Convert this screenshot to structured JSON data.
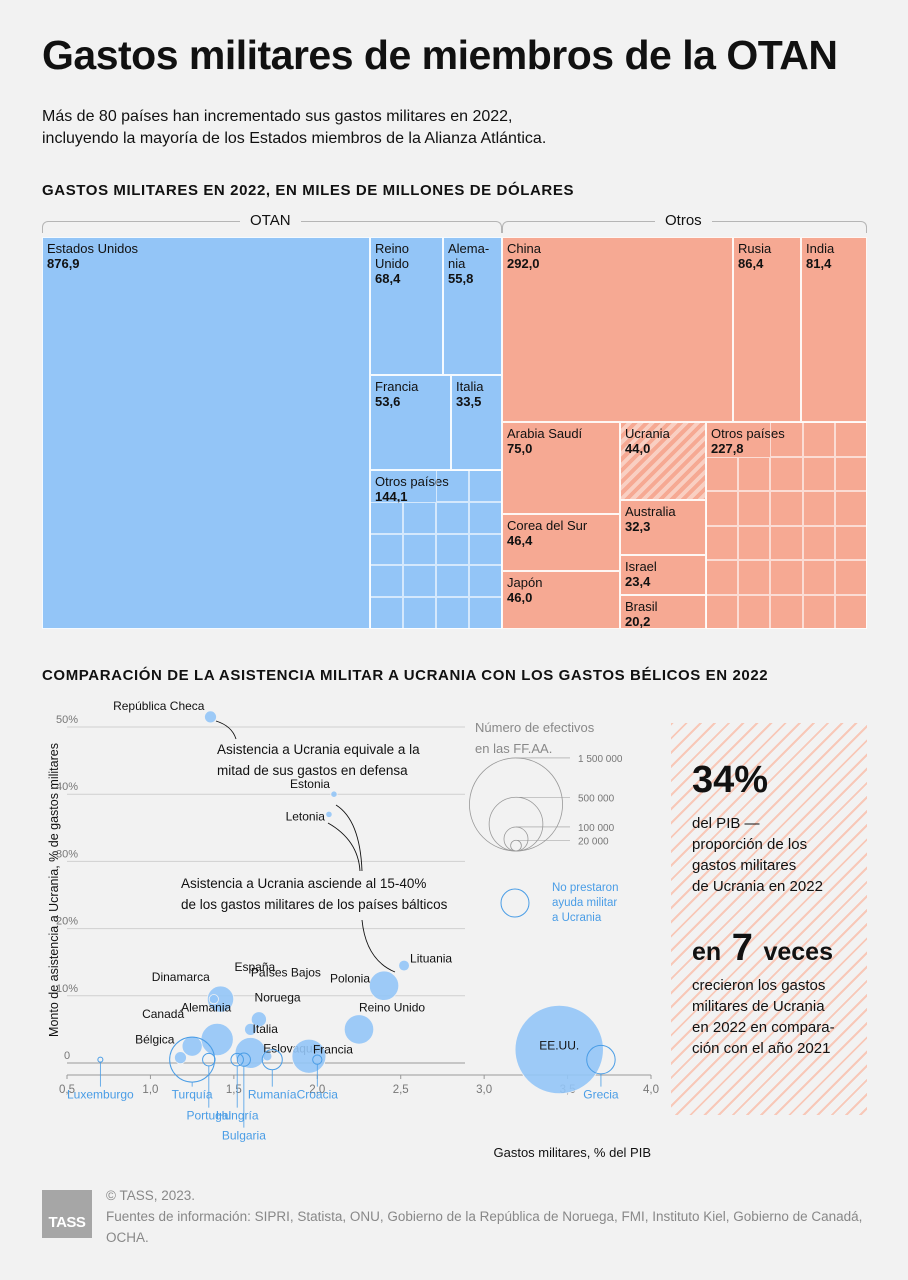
{
  "title": "Gastos militares de miembros de la OTAN",
  "subtitle_line1": "Más de 80 países han incrementado sus gastos militares en 2022,",
  "subtitle_line2": "incluyendo la mayoría de los Estados miembros de la Alianza Atlántica.",
  "section1_title": "GASTOS MILITARES EN 2022, EN MILES DE MILLONES DE DÓLARES",
  "group_labels": {
    "nato": "OTAN",
    "others": "Otros"
  },
  "section2_title": "COMPARACIÓN DE LA ASISTENCIA MILITAR A UCRANIA CON LOS GASTOS BÉLICOS EN 2022",
  "chart_data": [
    {
      "type": "treemap",
      "groups": [
        {
          "name": "OTAN",
          "items": [
            {
              "name": "Estados Unidos",
              "value": 876.9,
              "value_label": "876,9"
            },
            {
              "name": "Reino Unido",
              "value": 68.4,
              "value_label": "68,4"
            },
            {
              "name": "Alema-nia",
              "value": 55.8,
              "value_label": "55,8"
            },
            {
              "name": "Francia",
              "value": 53.6,
              "value_label": "53,6"
            },
            {
              "name": "Italia",
              "value": 33.5,
              "value_label": "33,5"
            },
            {
              "name": "Otros países",
              "value": 144.1,
              "value_label": "144,1"
            }
          ]
        },
        {
          "name": "Otros",
          "items": [
            {
              "name": "China",
              "value": 292.0,
              "value_label": "292,0"
            },
            {
              "name": "Rusia",
              "value": 86.4,
              "value_label": "86,4"
            },
            {
              "name": "India",
              "value": 81.4,
              "value_label": "81,4"
            },
            {
              "name": "Arabia Saudí",
              "value": 75.0,
              "value_label": "75,0"
            },
            {
              "name": "Ucrania",
              "value": 44.0,
              "value_label": "44,0"
            },
            {
              "name": "Otros países",
              "value": 227.8,
              "value_label": "227,8"
            },
            {
              "name": "Corea del Sur",
              "value": 46.4,
              "value_label": "46,4"
            },
            {
              "name": "Australia",
              "value": 32.3,
              "value_label": "32,3"
            },
            {
              "name": "Israel",
              "value": 23.4,
              "value_label": "23,4"
            },
            {
              "name": "Japón",
              "value": 46.0,
              "value_label": "46,0"
            },
            {
              "name": "Brasil",
              "value": 20.2,
              "value_label": "20,2"
            }
          ]
        }
      ]
    },
    {
      "type": "scatter",
      "xlabel": "Gastos militares, % del PIB",
      "ylabel": "Monto de asistencia a Ucrania, % de gastos militares",
      "xlim": [
        0.5,
        4.0
      ],
      "ylim": [
        0,
        50
      ],
      "x_ticks": [
        "0,5",
        "1,0",
        "1,5",
        "2,0",
        "2,5",
        "3,0",
        "3,5",
        "4,0"
      ],
      "y_ticks": [
        "0",
        "10%",
        "20%",
        "30%",
        "40%",
        "50%"
      ],
      "grid": true,
      "points": [
        {
          "name": "República Checa",
          "x": 1.36,
          "y": 51.5,
          "troops": 25000
        },
        {
          "name": "Estonia",
          "x": 2.1,
          "y": 40,
          "troops": 7000
        },
        {
          "name": "Letonia",
          "x": 2.07,
          "y": 37,
          "troops": 7000
        },
        {
          "name": "Lituania",
          "x": 2.52,
          "y": 14.5,
          "troops": 20000
        },
        {
          "name": "Polonia",
          "x": 2.4,
          "y": 11.5,
          "troops": 150000
        },
        {
          "name": "España",
          "x": 1.42,
          "y": 9.5,
          "troops": 120000
        },
        {
          "name": "Dinamarca",
          "x": 1.38,
          "y": 9.5,
          "troops": 15000
        },
        {
          "name": "Países Bajos",
          "x": 1.65,
          "y": 6.5,
          "troops": 40000
        },
        {
          "name": "Reino Unido",
          "x": 2.25,
          "y": 5,
          "troops": 150000
        },
        {
          "name": "Noruega",
          "x": 1.6,
          "y": 5,
          "troops": 25000
        },
        {
          "name": "Alemania",
          "x": 1.4,
          "y": 3.5,
          "troops": 180000
        },
        {
          "name": "Canadá",
          "x": 1.25,
          "y": 2.5,
          "troops": 70000
        },
        {
          "name": "Italia",
          "x": 1.6,
          "y": 1.5,
          "troops": 165000
        },
        {
          "name": "Eslovaquia",
          "x": 1.7,
          "y": 1,
          "troops": 15000
        },
        {
          "name": "Francia",
          "x": 1.95,
          "y": 1,
          "troops": 200000
        },
        {
          "name": "Bélgica",
          "x": 1.18,
          "y": 0.8,
          "troops": 25000
        },
        {
          "name": "EE.UU.",
          "x": 3.45,
          "y": 2,
          "troops": 1350000
        }
      ],
      "no_aid": [
        {
          "name": "Luxemburgo",
          "x": 0.7,
          "troops": 1000
        },
        {
          "name": "Turquía",
          "x": 1.25,
          "troops": 350000
        },
        {
          "name": "Portugal",
          "x": 1.35,
          "troops": 27000
        },
        {
          "name": "Hungría",
          "x": 1.52,
          "troops": 27000
        },
        {
          "name": "Bulgaria",
          "x": 1.56,
          "troops": 30000
        },
        {
          "name": "Rumanía",
          "x": 1.73,
          "troops": 70000
        },
        {
          "name": "Croacia",
          "x": 2.0,
          "troops": 15000
        },
        {
          "name": "Grecia",
          "x": 3.7,
          "troops": 140000
        }
      ],
      "legend_title_1": "Número de efectivos",
      "legend_title_2": "en las FF.AA.",
      "legend_sizes": [
        {
          "label": "1 500 000",
          "value": 1500000
        },
        {
          "label": "500 000",
          "value": 500000
        },
        {
          "label": "100 000",
          "value": 100000
        },
        {
          "label": "20 000",
          "value": 20000
        }
      ],
      "no_aid_legend": [
        "No prestaron",
        "ayuda militar",
        "a Ucrania"
      ],
      "annotations": [
        [
          "Asistencia a Ucrania equivale a la",
          "mitad de sus gastos en defensa"
        ],
        [
          "Asistencia a Ucrania asciende al 15-40%",
          "de los gastos militares de los países bálticos"
        ]
      ]
    }
  ],
  "callout": {
    "stat1": "34%",
    "stat1_text": [
      "del PIB —",
      "proporción de los",
      "gastos militares",
      "de Ucrania en 2022"
    ],
    "stat2_pre": "en",
    "stat2_num": "7",
    "stat2_post": "veces",
    "stat2_text": [
      "crecieron los gastos",
      "militares de Ucrania",
      "en 2022 en compara-",
      "ción con el año 2021"
    ]
  },
  "footer": {
    "logo": "TASS",
    "copyright": "© TASS, 2023.",
    "sources": "Fuentes de información: SIPRI, Statista, ONU, Gobierno de la República de Noruega, FMI, Instituto Kiel, Gobierno de Canadá, OCHA."
  },
  "colors": {
    "nato": "#93c5f7",
    "others": "#f6a993",
    "point": "#93c5f7",
    "no_aid": "#4a9de6"
  }
}
